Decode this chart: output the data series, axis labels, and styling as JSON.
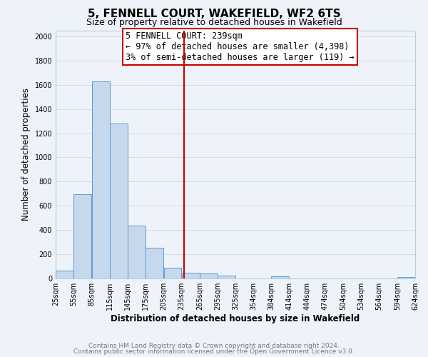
{
  "title": "5, FENNELL COURT, WAKEFIELD, WF2 6TS",
  "subtitle": "Size of property relative to detached houses in Wakefield",
  "xlabel": "Distribution of detached houses by size in Wakefield",
  "ylabel": "Number of detached properties",
  "bar_left_edges": [
    25,
    55,
    85,
    115,
    145,
    175,
    205,
    235,
    265,
    295,
    325,
    354,
    384,
    414,
    444,
    474,
    504,
    534,
    564,
    594
  ],
  "bar_widths": [
    30,
    30,
    30,
    30,
    30,
    30,
    30,
    30,
    30,
    30,
    29,
    30,
    30,
    30,
    30,
    30,
    30,
    30,
    30,
    30
  ],
  "bar_heights": [
    65,
    695,
    1630,
    1280,
    435,
    255,
    90,
    50,
    40,
    25,
    0,
    0,
    15,
    0,
    0,
    0,
    0,
    0,
    0,
    10
  ],
  "bar_color": "#c5d8ec",
  "bar_edge_color": "#5b9bd5",
  "vline_x": 239,
  "vline_color": "#cc0000",
  "annotation_line1": "5 FENNELL COURT: 239sqm",
  "annotation_line2": "← 97% of detached houses are smaller (4,398)",
  "annotation_line3": "3% of semi-detached houses are larger (119) →",
  "annotation_box_fc": "white",
  "annotation_box_ec": "#cc0000",
  "xlim": [
    25,
    624
  ],
  "ylim": [
    0,
    2050
  ],
  "yticks": [
    0,
    200,
    400,
    600,
    800,
    1000,
    1200,
    1400,
    1600,
    1800,
    2000
  ],
  "xtick_labels": [
    "25sqm",
    "55sqm",
    "85sqm",
    "115sqm",
    "145sqm",
    "175sqm",
    "205sqm",
    "235sqm",
    "265sqm",
    "295sqm",
    "325sqm",
    "354sqm",
    "384sqm",
    "414sqm",
    "444sqm",
    "474sqm",
    "504sqm",
    "534sqm",
    "564sqm",
    "594sqm",
    "624sqm"
  ],
  "xtick_positions": [
    25,
    55,
    85,
    115,
    145,
    175,
    205,
    235,
    265,
    295,
    325,
    354,
    384,
    414,
    444,
    474,
    504,
    534,
    564,
    594,
    624
  ],
  "grid_color": "#d0dce8",
  "bg_color": "#eef3f9",
  "footer_line1": "Contains HM Land Registry data © Crown copyright and database right 2024.",
  "footer_line2": "Contains public sector information licensed under the Open Government Licence v3.0.",
  "title_fontsize": 11,
  "subtitle_fontsize": 9,
  "axis_label_fontsize": 8.5,
  "tick_fontsize": 7,
  "annotation_fontsize": 8.5,
  "footer_fontsize": 6.5
}
